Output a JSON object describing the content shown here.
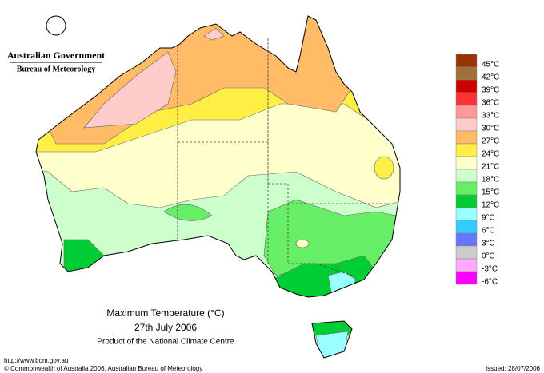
{
  "header": {
    "government": "Australian Government",
    "agency": "Bureau of Meteorology"
  },
  "legend": [
    {
      "label": "45°C",
      "color": "#993300"
    },
    {
      "label": "42°C",
      "color": "#a0703a"
    },
    {
      "label": "39°C",
      "color": "#cc0000"
    },
    {
      "label": "36°C",
      "color": "#ff3333"
    },
    {
      "label": "33°C",
      "color": "#ff9999"
    },
    {
      "label": "30°C",
      "color": "#ffcccc"
    },
    {
      "label": "27°C",
      "color": "#ffbb66"
    },
    {
      "label": "24°C",
      "color": "#ffee44"
    },
    {
      "label": "21°C",
      "color": "#ffffcc"
    },
    {
      "label": "18°C",
      "color": "#ccffcc"
    },
    {
      "label": "15°C",
      "color": "#66ee66"
    },
    {
      "label": "12°C",
      "color": "#00cc33"
    },
    {
      "label": "9°C",
      "color": "#99ffff"
    },
    {
      "label": "6°C",
      "color": "#33ccff"
    },
    {
      "label": "3°C",
      "color": "#6677ff"
    },
    {
      "label": "0°C",
      "color": "#cccccc"
    },
    {
      "label": "-3°C",
      "color": "#ffaaff"
    },
    {
      "label": "-6°C",
      "color": "#ff00ff"
    }
  ],
  "title": {
    "line1": "Maximum Temperature (°C)",
    "line2": "27th July 2006",
    "line3": "Product of the National Climate Centre"
  },
  "footer": {
    "url": "http://www.bom.gov.au",
    "copyright": "© Commonwealth of Australia 2006, Australian Bureau of Meteorology",
    "issued": "Issued: 28/07/2006"
  }
}
